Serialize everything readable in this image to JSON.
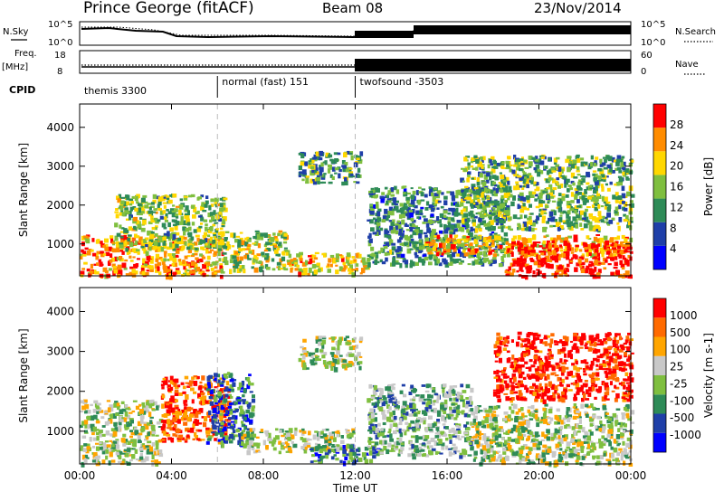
{
  "header": {
    "station": "Prince George (fitACF)",
    "beam": "Beam 08",
    "date": "23/Nov/2014"
  },
  "top_panels": {
    "nsky_label": "N.Sky",
    "nsky_ticks": [
      "10^5",
      "10^0"
    ],
    "nsearch_label": "N.Search",
    "nsearch_ticks": [
      "10^5",
      "10^0"
    ],
    "freq_label": "Freq.",
    "freq_unit": "[MHz]",
    "freq_ticks": [
      "18",
      "8"
    ],
    "nave_label": "Nave",
    "nave_ticks": [
      "60",
      "0"
    ],
    "cpid_label": "CPID",
    "cpid_segments": [
      {
        "label": "themis 3300",
        "start": 0,
        "end": 6
      },
      {
        "label": "normal (fast) 151",
        "start": 6,
        "end": 12
      },
      {
        "label": "twofsound -3503",
        "start": 12,
        "end": 24
      }
    ]
  },
  "chart_data": [
    {
      "type": "heatmap",
      "name": "power",
      "ylabel": "Slant Range [km]",
      "yticks": [
        1000,
        2000,
        3000,
        4000
      ],
      "ylim": [
        180,
        4600
      ],
      "xlim": [
        0,
        24
      ],
      "colorbar_label": "Power [dB]",
      "colorbar_ticks": [
        "28",
        "24",
        "20",
        "16",
        "12",
        "8",
        "4"
      ],
      "colorscale": [
        "#0000ff",
        "#1f3fa8",
        "#2e8b57",
        "#7fbf3f",
        "#ffd700",
        "#ff8c00",
        "#ff0000"
      ],
      "regions": [
        {
          "t0": 0.0,
          "t1": 6.2,
          "r0": 200,
          "r1": 1250,
          "level": 0.75
        },
        {
          "t0": 1.5,
          "t1": 6.3,
          "r0": 900,
          "r1": 2300,
          "level": 0.5
        },
        {
          "t0": 6.0,
          "t1": 9.0,
          "r0": 350,
          "r1": 1350,
          "level": 0.55
        },
        {
          "t0": 9.0,
          "t1": 12.5,
          "r0": 250,
          "r1": 800,
          "level": 0.65
        },
        {
          "t0": 9.5,
          "t1": 12.2,
          "r0": 2600,
          "r1": 3400,
          "level": 0.4
        },
        {
          "t0": 12.5,
          "t1": 18.5,
          "r0": 500,
          "r1": 2500,
          "level": 0.35
        },
        {
          "t0": 15.0,
          "t1": 24.0,
          "r0": 750,
          "r1": 1250,
          "level": 0.7
        },
        {
          "t0": 18.5,
          "t1": 24.0,
          "r0": 200,
          "r1": 1100,
          "level": 0.95
        },
        {
          "t0": 16.5,
          "t1": 24.0,
          "r0": 1400,
          "r1": 3300,
          "level": 0.45
        }
      ]
    },
    {
      "type": "heatmap",
      "name": "velocity",
      "ylabel": "Slant Range [km]",
      "yticks": [
        1000,
        2000,
        3000,
        4000
      ],
      "ylim": [
        180,
        4600
      ],
      "xlim": [
        0,
        24
      ],
      "xlabel": "Time UT",
      "xticks": [
        "00:00",
        "04:00",
        "08:00",
        "12:00",
        "16:00",
        "20:00",
        "00:00"
      ],
      "colorbar_label": "Velocity [m s-1]",
      "colorbar_ticks": [
        "1000",
        "500",
        "100",
        "25",
        "-25",
        "-100",
        "-500",
        "-1000"
      ],
      "colorscale": [
        "#0000ff",
        "#1f3fa8",
        "#2e8b57",
        "#7fbf3f",
        "#c8c8c8",
        "#ffa500",
        "#ff6a00",
        "#ff0000"
      ],
      "regions": [
        {
          "t0": 0.0,
          "t1": 3.5,
          "r0": 200,
          "r1": 1800,
          "level": 0.5
        },
        {
          "t0": 3.5,
          "t1": 6.5,
          "r0": 800,
          "r1": 2400,
          "level": 0.85
        },
        {
          "t0": 5.5,
          "t1": 7.5,
          "r0": 700,
          "r1": 2500,
          "level": 0.25
        },
        {
          "t0": 7.0,
          "t1": 12.0,
          "r0": 500,
          "r1": 1100,
          "level": 0.5
        },
        {
          "t0": 10.0,
          "t1": 13.0,
          "r0": 250,
          "r1": 700,
          "level": 0.3
        },
        {
          "t0": 9.5,
          "t1": 12.2,
          "r0": 2600,
          "r1": 3400,
          "level": 0.5
        },
        {
          "t0": 12.5,
          "t1": 17.0,
          "r0": 400,
          "r1": 2200,
          "level": 0.4
        },
        {
          "t0": 17.0,
          "t1": 24.0,
          "r0": 200,
          "r1": 1700,
          "level": 0.5
        },
        {
          "t0": 18.0,
          "t1": 24.0,
          "r0": 1800,
          "r1": 3500,
          "level": 0.95
        }
      ]
    }
  ]
}
